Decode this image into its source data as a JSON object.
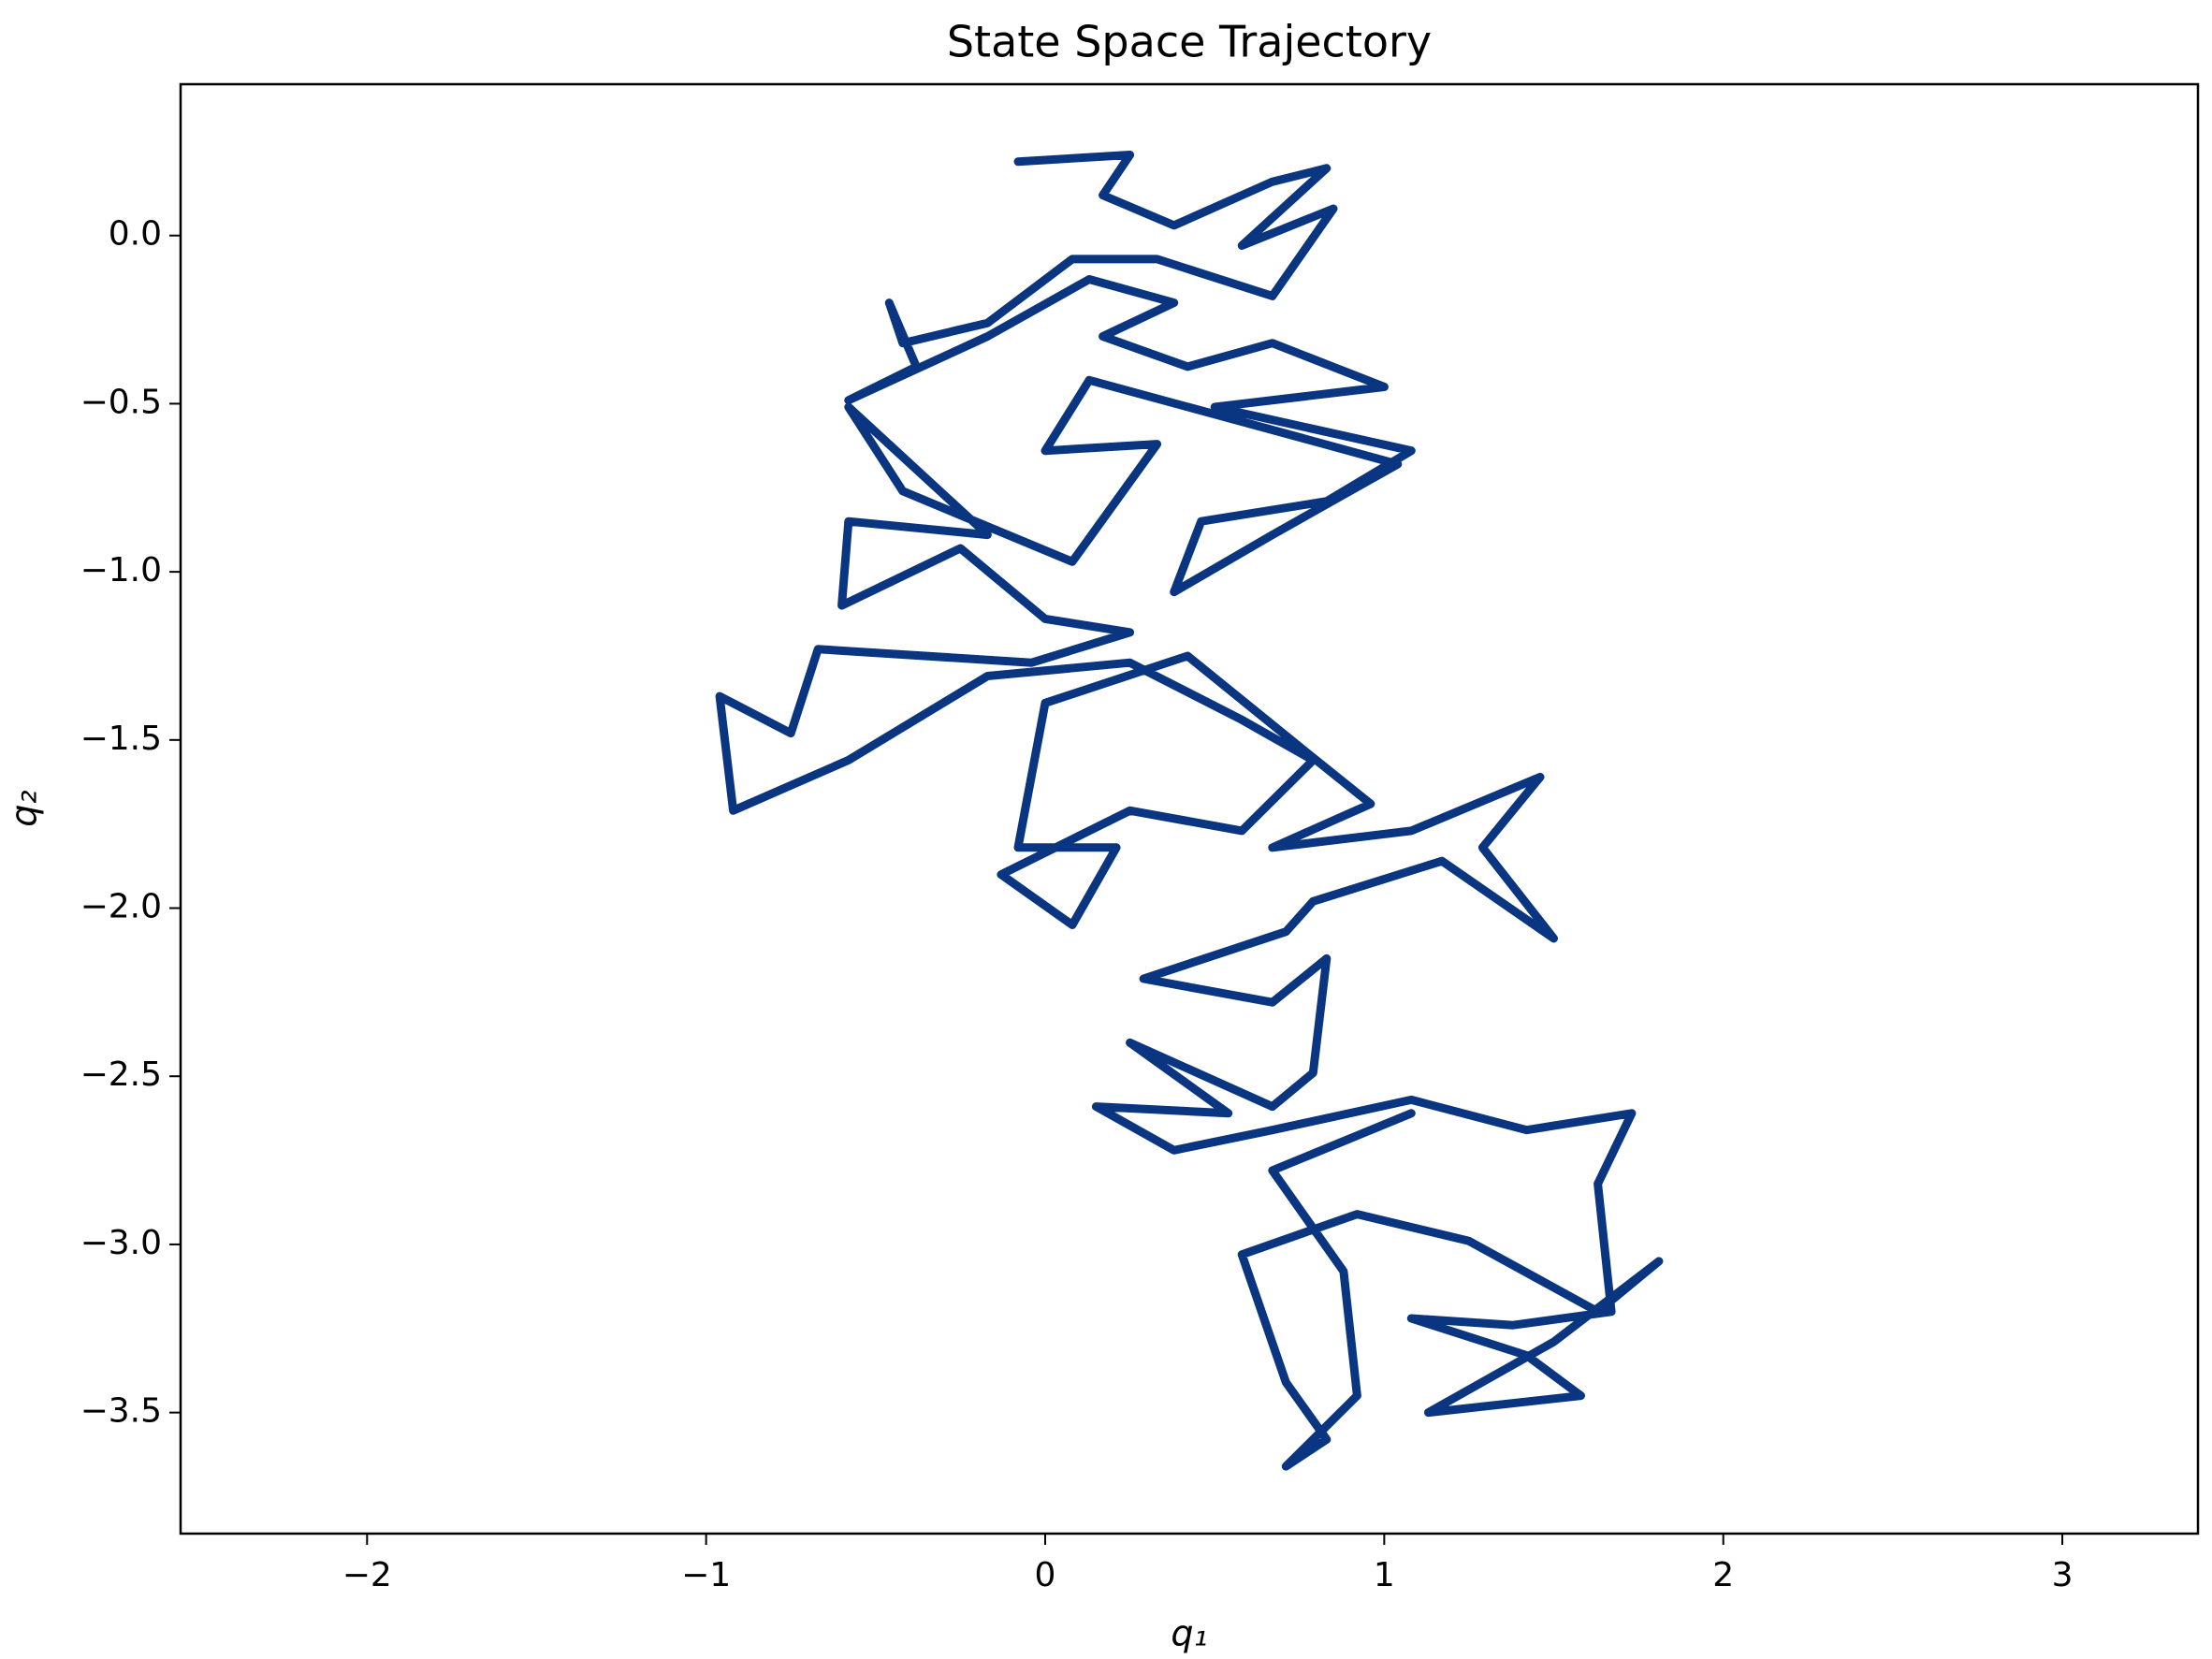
{
  "chart_data": {
    "type": "line",
    "title": "State Space Trajectory",
    "xlabel": "q₁",
    "ylabel": "q₂",
    "color": "#0a3580",
    "xlim": [
      -2.55,
      3.4
    ],
    "ylim": [
      -3.86,
      0.45
    ],
    "xticks": [
      {
        "value": -2,
        "label": "−2"
      },
      {
        "value": -1,
        "label": "−1"
      },
      0,
      1,
      2,
      3
    ],
    "yticks": [
      {
        "value": 0,
        "label": "0.0"
      },
      {
        "value": -0.5,
        "label": "−0.5"
      },
      {
        "value": -1,
        "label": "−1.0"
      },
      {
        "value": -1.5,
        "label": "−1.5"
      },
      {
        "value": -2,
        "label": "−2.0"
      },
      {
        "value": -2.5,
        "label": "−2.5"
      },
      {
        "value": -3,
        "label": "−3.0"
      },
      {
        "value": -3.5,
        "label": "−3.5"
      }
    ],
    "x": [
      -0.08,
      0.25,
      0.17,
      0.38,
      0.67,
      0.83,
      0.58,
      0.85,
      0.67,
      0.33,
      0.08,
      -0.17,
      -0.42,
      -0.46,
      -0.38,
      -0.58,
      -0.17,
      0.13,
      0.38,
      0.17,
      0.42,
      0.67,
      1.0,
      0.5,
      1.08,
      0.83,
      0.46,
      0.38,
      0.67,
      1.04,
      0.75,
      0.13,
      0.0,
      0.33,
      0.08,
      -0.42,
      -0.58,
      -0.17,
      -0.58,
      -0.6,
      -0.25,
      0.0,
      0.25,
      -0.04,
      -0.67,
      -0.75,
      -0.96,
      -0.92,
      -0.58,
      -0.17,
      0.25,
      0.58,
      0.79,
      0.58,
      0.25,
      -0.13,
      0.08,
      0.21,
      -0.08,
      0.0,
      0.42,
      0.75,
      0.96,
      0.67,
      1.08,
      1.46,
      1.29,
      1.5,
      1.17,
      0.79,
      0.71,
      0.29,
      0.67,
      0.83,
      0.79,
      0.67,
      0.25,
      0.54,
      0.15,
      0.38,
      0.67,
      1.08,
      1.42,
      1.73,
      1.63,
      1.67,
      1.38,
      1.08,
      1.42,
      1.58,
      1.13,
      1.5,
      1.81,
      1.63,
      1.25,
      0.92,
      0.58,
      0.71,
      0.83,
      0.71,
      0.92,
      0.88,
      0.67,
      1.08
    ],
    "y": [
      0.22,
      0.24,
      0.12,
      0.03,
      0.16,
      0.2,
      -0.03,
      0.08,
      -0.18,
      -0.07,
      -0.07,
      -0.26,
      -0.32,
      -0.2,
      -0.39,
      -0.49,
      -0.3,
      -0.13,
      -0.2,
      -0.3,
      -0.39,
      -0.32,
      -0.45,
      -0.51,
      -0.64,
      -0.79,
      -0.85,
      -1.06,
      -0.89,
      -0.68,
      -0.6,
      -0.43,
      -0.64,
      -0.62,
      -0.97,
      -0.76,
      -0.51,
      -0.89,
      -0.85,
      -1.1,
      -0.93,
      -1.14,
      -1.18,
      -1.27,
      -1.23,
      -1.48,
      -1.37,
      -1.71,
      -1.56,
      -1.31,
      -1.27,
      -1.44,
      -1.56,
      -1.77,
      -1.71,
      -1.9,
      -2.05,
      -1.82,
      -1.82,
      -1.39,
      -1.25,
      -1.52,
      -1.69,
      -1.82,
      -1.77,
      -1.61,
      -1.82,
      -2.09,
      -1.86,
      -1.98,
      -2.07,
      -2.21,
      -2.28,
      -2.15,
      -2.49,
      -2.59,
      -2.4,
      -2.61,
      -2.59,
      -2.72,
      -2.66,
      -2.57,
      -2.66,
      -2.61,
      -2.82,
      -3.2,
      -3.24,
      -3.22,
      -3.33,
      -3.45,
      -3.5,
      -3.29,
      -3.05,
      -3.2,
      -2.99,
      -2.91,
      -3.03,
      -3.41,
      -3.58,
      -3.66,
      -3.45,
      -3.08,
      -2.78,
      -2.61
    ]
  }
}
